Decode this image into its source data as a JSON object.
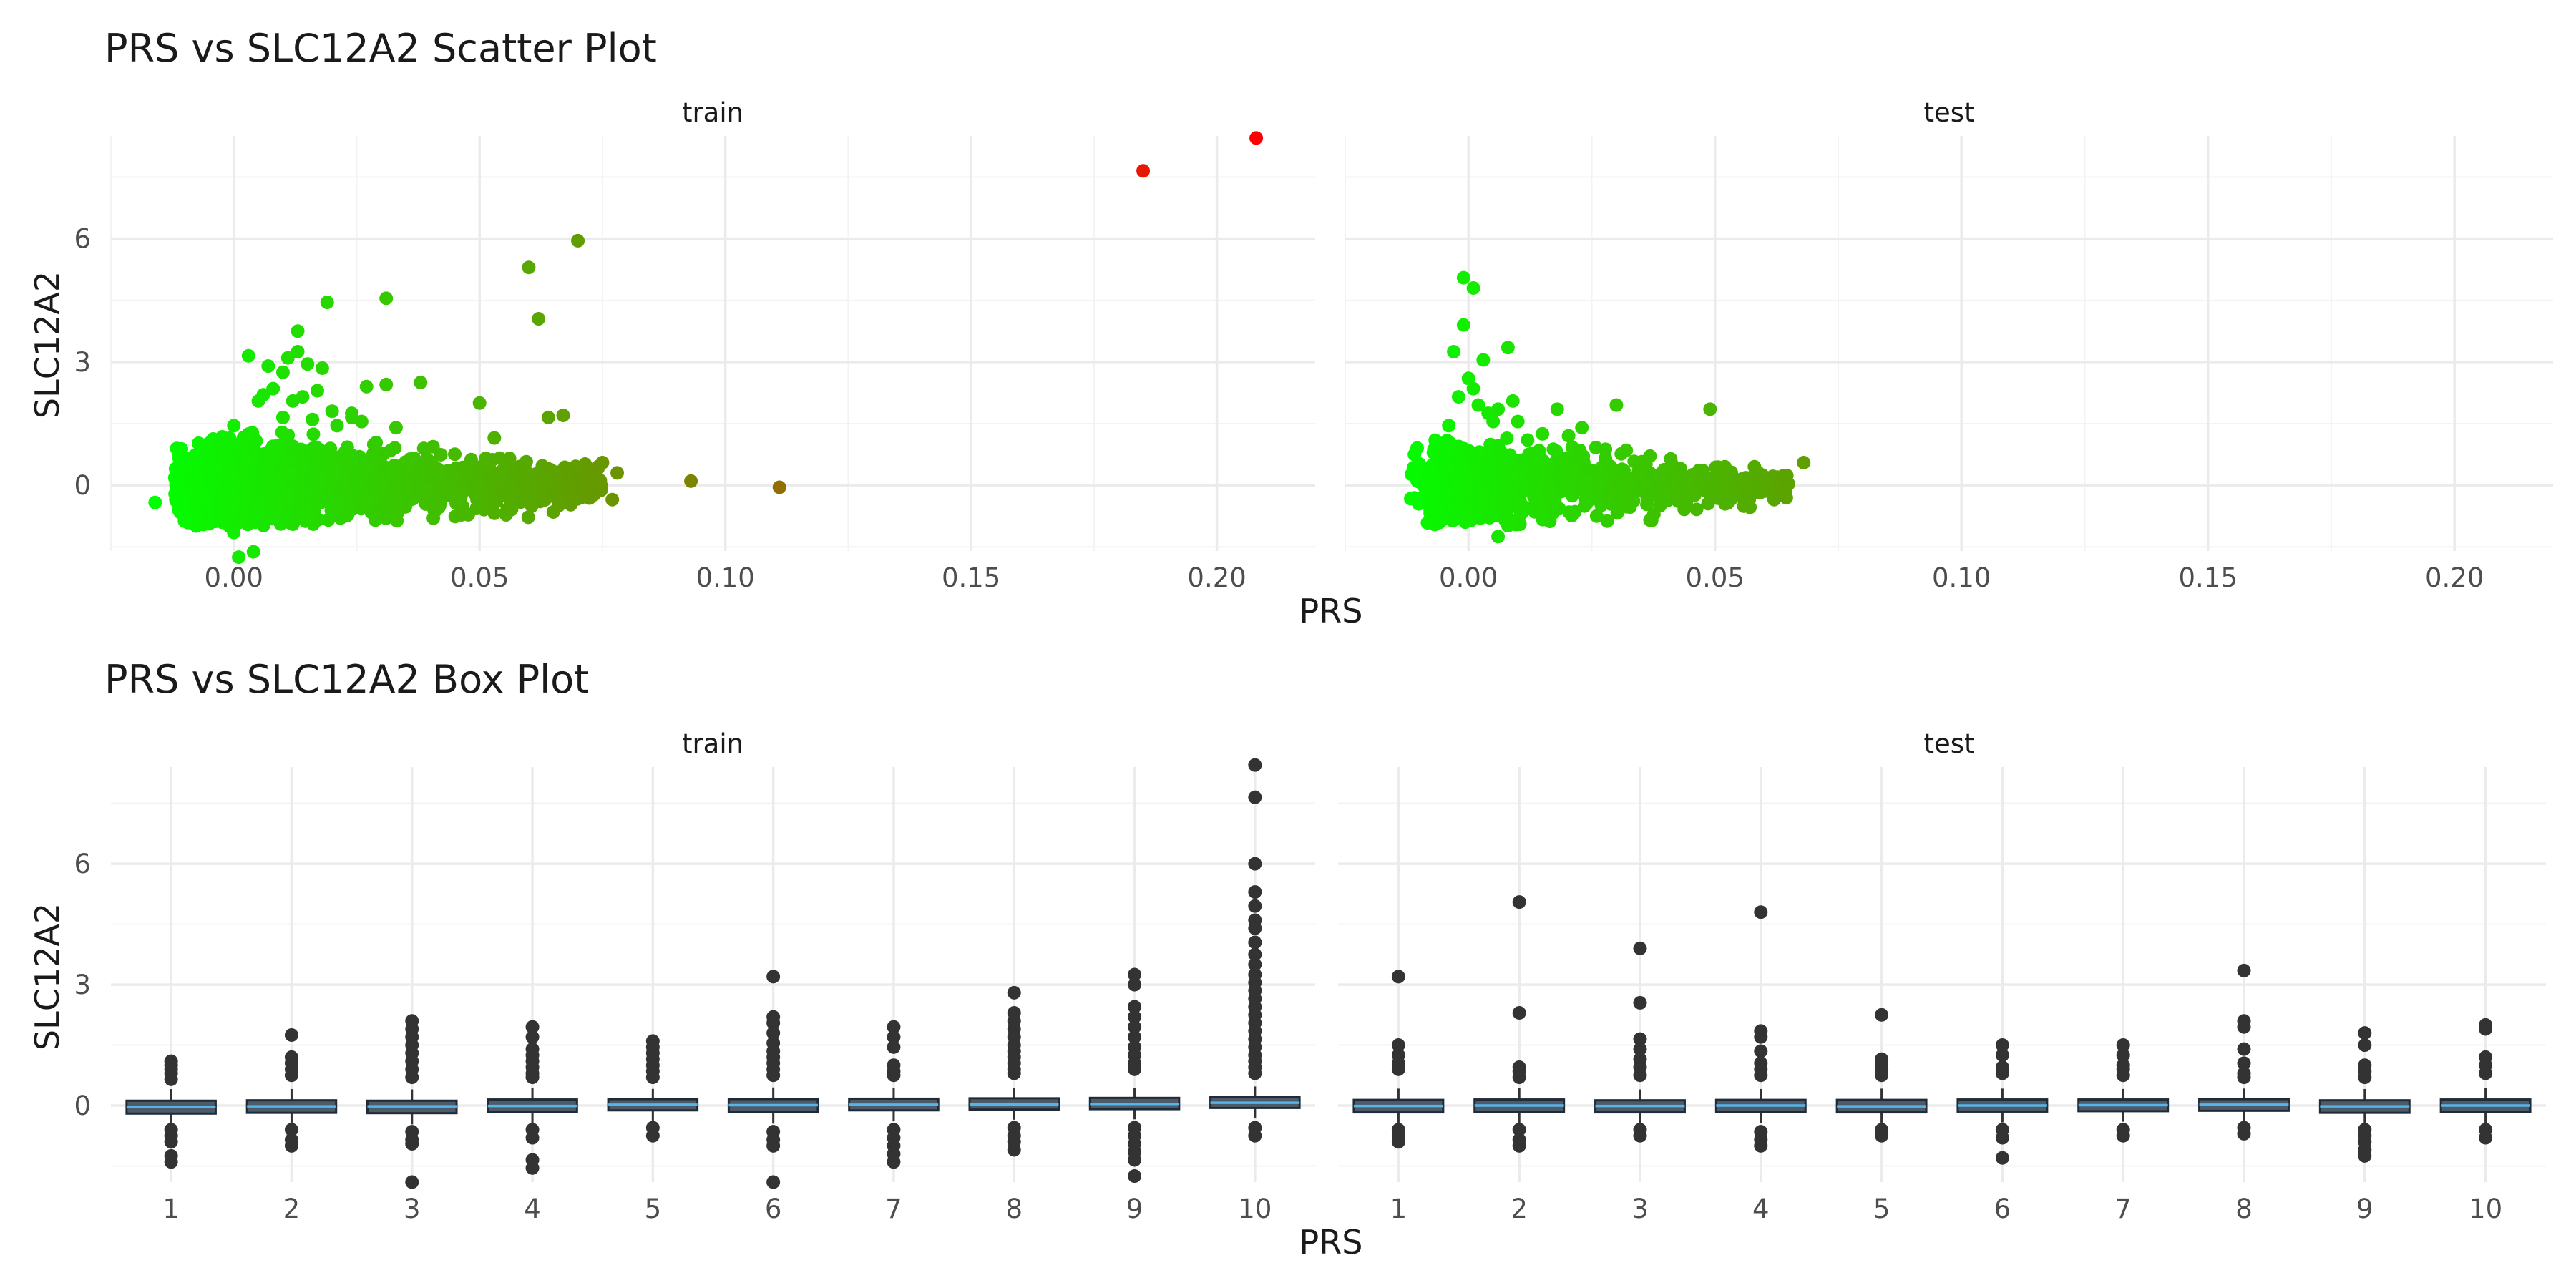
{
  "chart_data": [
    {
      "type": "scatter",
      "title": "PRS vs SLC12A2 Scatter Plot",
      "xlabel": "PRS",
      "ylabel": "SLC12A2",
      "xlim": [
        -0.025,
        0.22
      ],
      "ylim": [
        -1.6,
        8.5
      ],
      "x_ticks": [
        0.0,
        0.05,
        0.1,
        0.15,
        0.2
      ],
      "x_tick_labels": [
        "0.00",
        "0.05",
        "0.10",
        "0.15",
        "0.20"
      ],
      "y_ticks": [
        0,
        3,
        6
      ],
      "y_tick_labels": [
        "0",
        "3",
        "6"
      ],
      "color_scale": {
        "low": "#00ff00",
        "high": "#ff0000",
        "variable": "PRS"
      },
      "grid": true,
      "facets": [
        {
          "label": "train",
          "points": [
            [
              -0.016,
              -0.42
            ],
            [
              -0.012,
              0.18
            ],
            [
              -0.01,
              -0.1
            ],
            [
              -0.008,
              0.3
            ],
            [
              -0.005,
              0.62
            ],
            [
              -0.003,
              -0.85
            ],
            [
              -0.002,
              0.95
            ],
            [
              0.0,
              1.45
            ],
            [
              0.0,
              -1.15
            ],
            [
              0.001,
              -1.75
            ],
            [
              0.003,
              3.15
            ],
            [
              0.004,
              -1.62
            ],
            [
              0.005,
              2.05
            ],
            [
              0.006,
              2.2
            ],
            [
              0.007,
              2.9
            ],
            [
              0.008,
              2.35
            ],
            [
              0.01,
              1.65
            ],
            [
              0.01,
              2.75
            ],
            [
              0.011,
              3.1
            ],
            [
              0.012,
              2.05
            ],
            [
              0.012,
              0.95
            ],
            [
              0.013,
              3.25
            ],
            [
              0.013,
              3.75
            ],
            [
              0.014,
              2.15
            ],
            [
              0.015,
              2.95
            ],
            [
              0.016,
              1.6
            ],
            [
              0.017,
              2.3
            ],
            [
              0.018,
              2.85
            ],
            [
              0.019,
              4.45
            ],
            [
              0.02,
              1.8
            ],
            [
              0.021,
              1.45
            ],
            [
              0.024,
              1.65
            ],
            [
              0.024,
              1.75
            ],
            [
              0.026,
              1.55
            ],
            [
              0.027,
              -0.35
            ],
            [
              0.027,
              2.4
            ],
            [
              0.031,
              4.55
            ],
            [
              0.031,
              2.45
            ],
            [
              0.033,
              1.4
            ],
            [
              0.038,
              2.5
            ],
            [
              0.033,
              -0.55
            ],
            [
              0.04,
              0.2
            ],
            [
              0.045,
              0.25
            ],
            [
              0.05,
              2.0
            ],
            [
              0.053,
              1.15
            ],
            [
              0.055,
              -0.25
            ],
            [
              0.06,
              5.3
            ],
            [
              0.062,
              4.05
            ],
            [
              0.064,
              1.65
            ],
            [
              0.067,
              1.7
            ],
            [
              0.065,
              -0.65
            ],
            [
              0.07,
              5.95
            ],
            [
              0.068,
              0.3
            ],
            [
              0.073,
              0.15
            ],
            [
              0.075,
              0.55
            ],
            [
              0.077,
              -0.35
            ],
            [
              0.078,
              0.3
            ],
            [
              0.093,
              0.1
            ],
            [
              0.111,
              -0.05
            ],
            [
              0.185,
              7.65
            ],
            [
              0.208,
              8.45
            ]
          ],
          "dense_cluster": {
            "x_range": [
              -0.012,
              0.075
            ],
            "y_center": 0.0,
            "y_spread": 0.45
          }
        },
        {
          "label": "test",
          "points": [
            [
              -0.01,
              -0.35
            ],
            [
              -0.005,
              0.35
            ],
            [
              -0.004,
              1.45
            ],
            [
              -0.003,
              -0.85
            ],
            [
              -0.003,
              3.25
            ],
            [
              -0.002,
              2.15
            ],
            [
              -0.001,
              5.05
            ],
            [
              -0.001,
              3.9
            ],
            [
              0.0,
              2.6
            ],
            [
              0.001,
              2.35
            ],
            [
              0.001,
              4.8
            ],
            [
              0.002,
              1.95
            ],
            [
              0.003,
              3.05
            ],
            [
              0.004,
              1.75
            ],
            [
              0.005,
              1.55
            ],
            [
              0.006,
              -1.25
            ],
            [
              0.006,
              1.85
            ],
            [
              0.008,
              3.35
            ],
            [
              0.009,
              2.05
            ],
            [
              0.01,
              1.55
            ],
            [
              0.012,
              1.1
            ],
            [
              0.015,
              1.25
            ],
            [
              0.018,
              1.85
            ],
            [
              0.023,
              1.4
            ],
            [
              0.026,
              -0.75
            ],
            [
              0.03,
              1.95
            ],
            [
              0.032,
              0.85
            ],
            [
              0.049,
              1.85
            ],
            [
              0.052,
              0.45
            ],
            [
              0.058,
              0.45
            ],
            [
              0.062,
              -0.35
            ],
            [
              0.064,
              0.2
            ],
            [
              0.068,
              0.55
            ]
          ],
          "dense_cluster": {
            "x_range": [
              -0.012,
              0.065
            ],
            "y_center": 0.0,
            "y_spread": 0.42
          }
        }
      ]
    },
    {
      "type": "box",
      "title": "PRS vs SLC12A2 Box Plot",
      "xlabel": "PRS",
      "ylabel": "SLC12A2",
      "categories": [
        "1",
        "2",
        "3",
        "4",
        "5",
        "6",
        "7",
        "8",
        "9",
        "10"
      ],
      "ylim": [
        -1.9,
        8.4
      ],
      "y_ticks": [
        0,
        3,
        6
      ],
      "y_tick_labels": [
        "0",
        "3",
        "6"
      ],
      "grid": true,
      "facets": [
        {
          "label": "train",
          "boxes": [
            {
              "q1": -0.2,
              "median": -0.03,
              "q3": 0.12,
              "outliers": [
                1.1,
                1.0,
                0.9,
                0.8,
                0.65,
                -0.6,
                -0.75,
                -0.9,
                -1.25,
                -1.4
              ]
            },
            {
              "q1": -0.18,
              "median": -0.02,
              "q3": 0.13,
              "outliers": [
                1.75,
                1.2,
                1.05,
                0.9,
                0.75,
                -0.6,
                -0.85,
                -1.0
              ]
            },
            {
              "q1": -0.19,
              "median": -0.02,
              "q3": 0.12,
              "outliers": [
                2.1,
                1.9,
                1.7,
                1.5,
                1.3,
                1.1,
                0.9,
                0.7,
                -0.65,
                -0.85,
                -0.95,
                -1.9
              ]
            },
            {
              "q1": -0.16,
              "median": -0.01,
              "q3": 0.15,
              "outliers": [
                1.95,
                1.7,
                1.4,
                1.25,
                1.1,
                0.95,
                0.8,
                0.7,
                -0.6,
                -0.8,
                -1.35,
                -1.55
              ]
            },
            {
              "q1": -0.12,
              "median": 0.02,
              "q3": 0.16,
              "outliers": [
                1.6,
                1.45,
                1.3,
                1.15,
                1.0,
                0.85,
                0.7,
                -0.55,
                -0.75
              ]
            },
            {
              "q1": -0.16,
              "median": 0.01,
              "q3": 0.16,
              "outliers": [
                3.2,
                2.2,
                2.05,
                1.8,
                1.55,
                1.35,
                1.2,
                1.05,
                0.9,
                0.75,
                -0.65,
                -0.85,
                -1.0,
                -1.9
              ]
            },
            {
              "q1": -0.12,
              "median": 0.02,
              "q3": 0.17,
              "outliers": [
                1.95,
                1.7,
                1.45,
                1.0,
                0.85,
                0.75,
                -0.6,
                -0.8,
                -1.0,
                -1.2,
                -1.4
              ]
            },
            {
              "q1": -0.1,
              "median": 0.03,
              "q3": 0.18,
              "outliers": [
                2.8,
                2.3,
                2.1,
                1.9,
                1.7,
                1.5,
                1.35,
                1.2,
                1.05,
                0.9,
                0.8,
                -0.55,
                -0.75,
                -0.9,
                -1.1
              ]
            },
            {
              "q1": -0.09,
              "median": 0.04,
              "q3": 0.19,
              "outliers": [
                3.25,
                3.0,
                2.45,
                2.2,
                1.95,
                1.7,
                1.45,
                1.25,
                1.05,
                0.9,
                -0.55,
                -0.75,
                -0.95,
                -1.15,
                -1.35,
                -1.75
              ]
            },
            {
              "q1": -0.06,
              "median": 0.07,
              "q3": 0.22,
              "outliers": [
                8.45,
                7.65,
                6.0,
                5.3,
                4.95,
                4.6,
                4.4,
                4.05,
                3.75,
                3.5,
                3.25,
                3.05,
                2.85,
                2.65,
                2.45,
                2.25,
                2.05,
                1.85,
                1.65,
                1.45,
                1.25,
                1.1,
                0.95,
                0.8,
                -0.55,
                -0.75
              ]
            }
          ]
        },
        {
          "label": "test",
          "boxes": [
            {
              "q1": -0.17,
              "median": -0.01,
              "q3": 0.14,
              "outliers": [
                3.2,
                1.5,
                1.25,
                1.05,
                0.9,
                -0.6,
                -0.75,
                -0.9
              ]
            },
            {
              "q1": -0.16,
              "median": 0.0,
              "q3": 0.15,
              "outliers": [
                5.05,
                2.3,
                0.95,
                0.85,
                0.7,
                -0.6,
                -0.85,
                -1.0
              ]
            },
            {
              "q1": -0.17,
              "median": -0.01,
              "q3": 0.13,
              "outliers": [
                3.9,
                2.55,
                1.65,
                1.4,
                1.15,
                0.95,
                0.75,
                -0.6,
                -0.75
              ]
            },
            {
              "q1": -0.16,
              "median": 0.0,
              "q3": 0.14,
              "outliers": [
                4.8,
                1.85,
                1.7,
                1.35,
                1.05,
                0.9,
                0.75,
                -0.65,
                -0.85,
                -1.0
              ]
            },
            {
              "q1": -0.17,
              "median": -0.02,
              "q3": 0.14,
              "outliers": [
                2.25,
                1.15,
                1.0,
                0.9,
                0.75,
                -0.6,
                -0.75
              ]
            },
            {
              "q1": -0.15,
              "median": 0.0,
              "q3": 0.15,
              "outliers": [
                1.5,
                1.25,
                0.95,
                0.8,
                -0.6,
                -0.8,
                -1.3
              ]
            },
            {
              "q1": -0.14,
              "median": 0.01,
              "q3": 0.15,
              "outliers": [
                1.5,
                1.25,
                1.0,
                0.9,
                0.75,
                -0.6,
                -0.75
              ]
            },
            {
              "q1": -0.13,
              "median": 0.02,
              "q3": 0.16,
              "outliers": [
                3.35,
                2.1,
                1.95,
                1.4,
                1.05,
                0.8,
                0.7,
                -0.55,
                -0.7
              ]
            },
            {
              "q1": -0.18,
              "median": -0.02,
              "q3": 0.13,
              "outliers": [
                1.8,
                1.5,
                1.0,
                0.85,
                0.7,
                -0.6,
                -0.75,
                -0.9,
                -1.1,
                -1.25
              ]
            },
            {
              "q1": -0.16,
              "median": 0.0,
              "q3": 0.15,
              "outliers": [
                2.0,
                1.9,
                1.2,
                1.0,
                0.8,
                -0.6,
                -0.8
              ]
            }
          ]
        }
      ]
    }
  ]
}
